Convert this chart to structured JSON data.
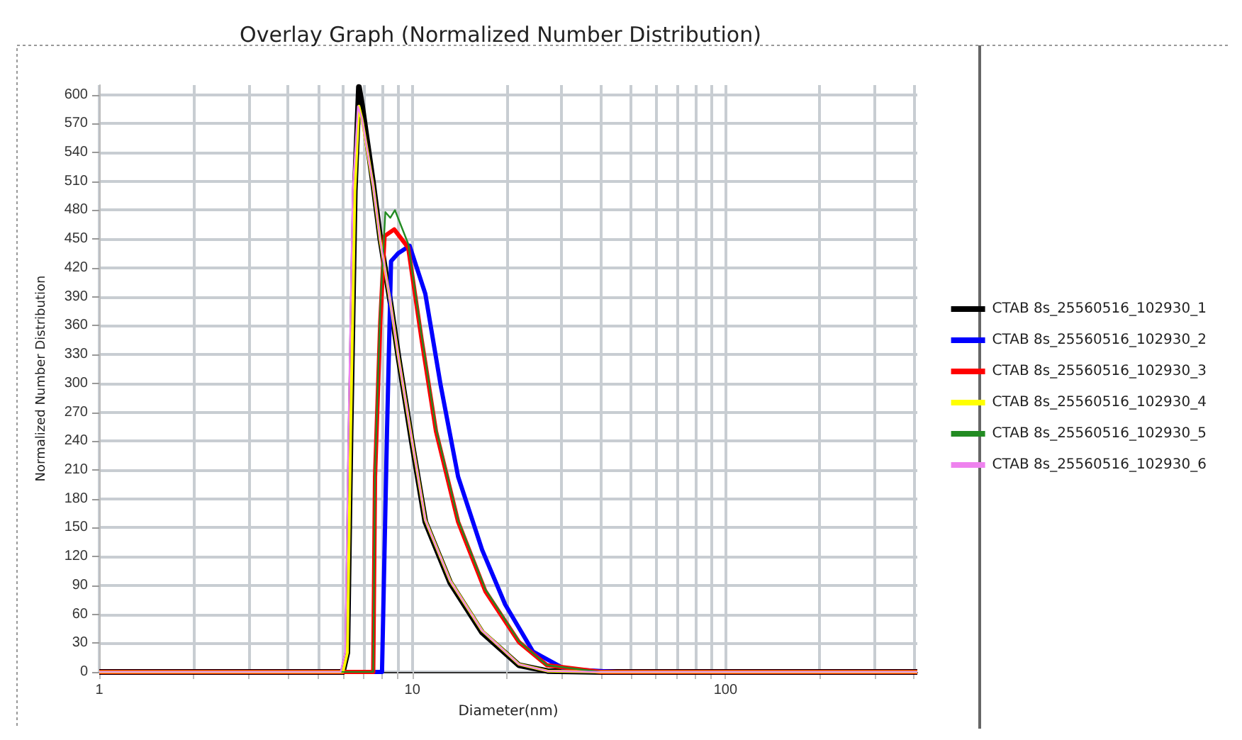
{
  "chart_data": {
    "type": "line",
    "title": "Overlay Graph (Normalized Number Distribution)",
    "xlabel": "Diameter(nm)",
    "ylabel": "Normalized Number Distribution",
    "log": "x",
    "xlim": [
      1,
      410
    ],
    "ylim": [
      0,
      610
    ],
    "xticks": [
      1,
      {
        "value": 2,
        "label": null
      },
      {
        "value": 3,
        "label": null
      },
      {
        "value": 4,
        "label": null
      },
      {
        "value": 5,
        "label": null
      },
      {
        "value": 6,
        "label": null
      },
      {
        "value": 7,
        "label": null
      },
      {
        "value": 8,
        "label": null
      },
      {
        "value": 9,
        "label": null
      },
      10,
      {
        "value": 20,
        "label": null
      },
      {
        "value": 30,
        "label": null
      },
      {
        "value": 40,
        "label": null
      },
      {
        "value": 50,
        "label": null
      },
      {
        "value": 60,
        "label": null
      },
      {
        "value": 70,
        "label": null
      },
      {
        "value": 80,
        "label": null
      },
      {
        "value": 90,
        "label": null
      },
      100,
      {
        "value": 200,
        "label": null
      },
      {
        "value": 300,
        "label": null
      },
      {
        "value": 400,
        "label": null
      }
    ],
    "yticks": [
      0,
      30,
      60,
      90,
      120,
      150,
      180,
      210,
      240,
      270,
      300,
      330,
      360,
      390,
      420,
      450,
      480,
      510,
      540,
      570,
      600
    ],
    "grid": true,
    "legend": "right",
    "marker": "none",
    "series": [
      {
        "name": "CTAB 8s_25560516_102930_1",
        "color": "#000000",
        "x": [
          1,
          6.0,
          6.2,
          6.35,
          6.55,
          6.75,
          6.9,
          7.5,
          7.9,
          8.5,
          9.03,
          10,
          11,
          13.2,
          16.7,
          21.9,
          27,
          40,
          410
        ],
        "values": [
          0,
          0,
          20,
          250,
          500,
          608,
          590,
          507,
          450,
          385,
          327,
          236,
          156,
          93,
          41,
          7,
          1,
          0,
          0
        ]
      },
      {
        "name": "CTAB 8s_25560516_102930_2",
        "color": "#0000ff",
        "x": [
          1,
          8.0,
          8.3,
          8.55,
          9.0,
          9.8,
          11,
          12.3,
          14,
          16.7,
          19.8,
          24.3,
          30.7,
          45,
          410
        ],
        "values": [
          0,
          0,
          250,
          427,
          435,
          443,
          393,
          299,
          203,
          127,
          70,
          21,
          3,
          0,
          0
        ]
      },
      {
        "name": "CTAB 8s_25560516_102930_3",
        "color": "#ff0000",
        "x": [
          1,
          7.5,
          7.6,
          7.9,
          8.15,
          8.75,
          9.7,
          10.7,
          11.9,
          14,
          17.1,
          21.9,
          26.9,
          40,
          410
        ],
        "values": [
          0,
          0,
          203,
          364,
          453,
          460,
          441,
          346,
          250,
          156,
          84,
          31,
          7,
          0,
          0
        ]
      },
      {
        "name": "CTAB 8s_25560516_102930_4",
        "color": "#ffff00",
        "x": [
          1,
          6.0,
          6.2,
          6.35,
          6.55,
          6.75,
          6.9,
          7.5,
          7.9,
          8.5,
          9.03,
          10,
          11,
          13.2,
          16.7,
          21.9,
          27,
          40,
          410
        ],
        "values": [
          0,
          0,
          20,
          250,
          500,
          588,
          575,
          505,
          448,
          385,
          327,
          238,
          158,
          95,
          43,
          8,
          1,
          0,
          0
        ]
      },
      {
        "name": "CTAB 8s_25560516_102930_5",
        "color": "#228b22",
        "x": [
          1,
          7.5,
          7.6,
          7.9,
          8.2,
          8.5,
          8.8,
          9.7,
          10.7,
          11.9,
          14,
          17.1,
          21.9,
          26.9,
          40,
          410
        ],
        "values": [
          0,
          0,
          210,
          380,
          478,
          472,
          480,
          445,
          350,
          253,
          158,
          86,
          32,
          7,
          0,
          0
        ]
      },
      {
        "name": "CTAB 8s_25560516_102930_6",
        "color": "#ee82ee",
        "x": [
          1,
          5.9,
          6.1,
          6.25,
          6.45,
          6.7,
          6.9,
          7.5,
          7.9,
          8.5,
          9.03,
          10,
          11,
          13.2,
          16.7,
          21.9,
          27,
          40,
          410
        ],
        "values": [
          0,
          0,
          20,
          250,
          500,
          588,
          575,
          505,
          448,
          385,
          327,
          238,
          158,
          95,
          43,
          8,
          1,
          0,
          0
        ]
      }
    ]
  }
}
